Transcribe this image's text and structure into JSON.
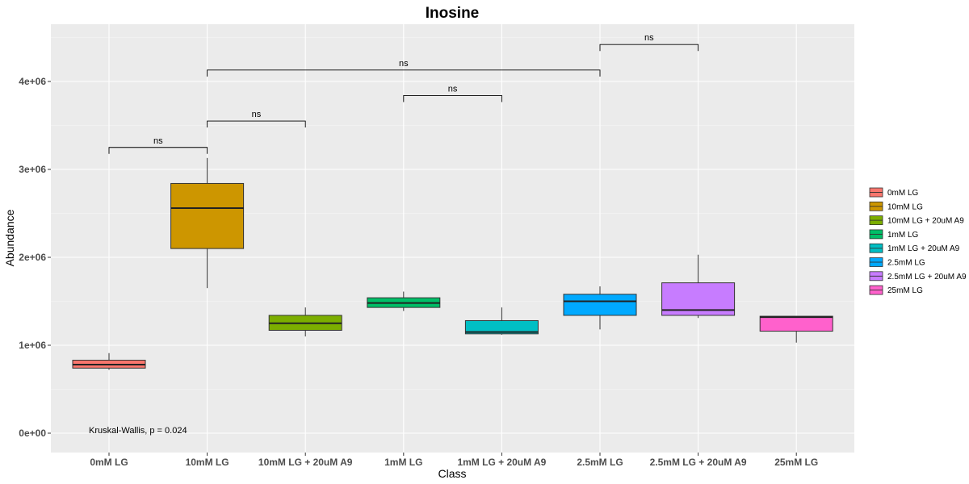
{
  "chart_data": {
    "type": "box",
    "title": "Inosine",
    "xlabel": "Class",
    "ylabel": "Abundance",
    "ylim": [
      -200000,
      4700000
    ],
    "yticks": [
      {
        "value": 0,
        "label": "0e+00"
      },
      {
        "value": 1000000,
        "label": "1e+06"
      },
      {
        "value": 2000000,
        "label": "2e+06"
      },
      {
        "value": 3000000,
        "label": "3e+06"
      },
      {
        "value": 4000000,
        "label": "4e+06"
      }
    ],
    "grid": true,
    "legend_position": "right",
    "categories": [
      "0mM LG",
      "10mM LG",
      "10mM LG + 20uM A9",
      "1mM LG",
      "1mM LG + 20uM A9",
      "2.5mM LG",
      "2.5mM LG + 20uM A9",
      "25mM LG"
    ],
    "series": [
      {
        "name": "0mM LG",
        "color": "#F8766D",
        "min": 720000,
        "q1": 740000,
        "median": 780000,
        "q3": 830000,
        "max": 910000
      },
      {
        "name": "10mM LG",
        "color": "#CD9600",
        "min": 1650000,
        "q1": 2100000,
        "median": 2560000,
        "q3": 2840000,
        "max": 3130000
      },
      {
        "name": "10mM LG + 20uM A9",
        "color": "#7CAE00",
        "min": 1100000,
        "q1": 1170000,
        "median": 1250000,
        "q3": 1340000,
        "max": 1430000
      },
      {
        "name": "1mM LG",
        "color": "#00BE67",
        "min": 1390000,
        "q1": 1430000,
        "median": 1480000,
        "q3": 1540000,
        "max": 1610000
      },
      {
        "name": "1mM LG + 20uM A9",
        "color": "#00BFC4",
        "min": 1120000,
        "q1": 1130000,
        "median": 1150000,
        "q3": 1280000,
        "max": 1430000
      },
      {
        "name": "2.5mM LG",
        "color": "#00A9FF",
        "min": 1180000,
        "q1": 1340000,
        "median": 1500000,
        "q3": 1580000,
        "max": 1670000
      },
      {
        "name": "2.5mM LG + 20uM A9",
        "color": "#C77CFF",
        "min": 1310000,
        "q1": 1340000,
        "median": 1400000,
        "q3": 1710000,
        "max": 2030000
      },
      {
        "name": "25mM LG",
        "color": "#FF61CC",
        "min": 1030000,
        "q1": 1160000,
        "median": 1320000,
        "q3": 1330000,
        "max": 1330000
      }
    ],
    "comparisons": [
      {
        "from": "0mM LG",
        "to": "10mM LG",
        "y": 3250000,
        "label": "ns"
      },
      {
        "from": "10mM LG",
        "to": "10mM LG + 20uM A9",
        "y": 3550000,
        "label": "ns"
      },
      {
        "from": "1mM LG",
        "to": "1mM LG + 20uM A9",
        "y": 3840000,
        "label": "ns"
      },
      {
        "from": "10mM LG",
        "to": "2.5mM LG",
        "y": 4130000,
        "label": "ns"
      },
      {
        "from": "2.5mM LG",
        "to": "2.5mM LG + 20uM A9",
        "y": 4420000,
        "label": "ns"
      }
    ],
    "annotation": "Kruskal-Wallis, p = 0.024"
  }
}
